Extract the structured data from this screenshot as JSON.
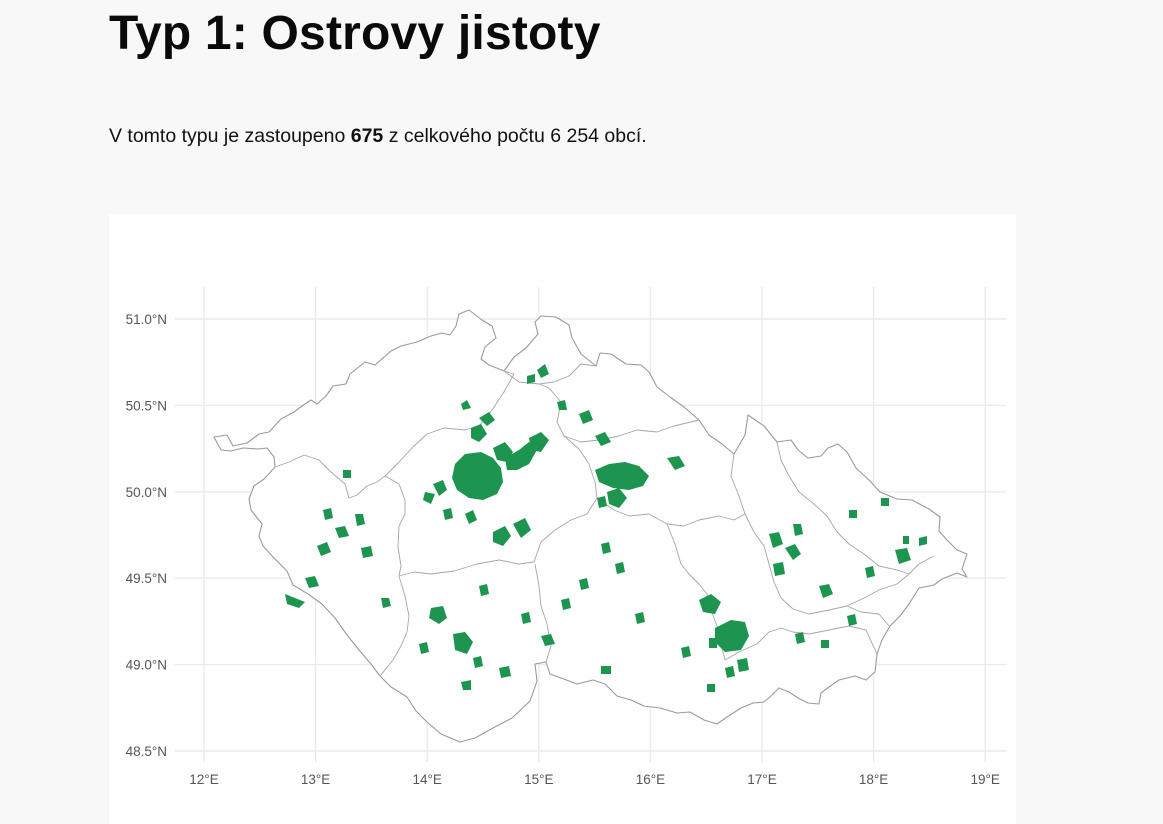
{
  "page": {
    "title": "Typ 1: Ostrovy jistoty",
    "summary_before": "V tomto typu je zastoupeno ",
    "summary_count": "675",
    "summary_after": " z celkového počtu 6 254 obcí."
  },
  "map": {
    "type": "choropleth",
    "highlight_color": "#1d944f",
    "border_color": "#9a9a9a",
    "grid": true,
    "lon_ticks": [
      {
        "value": 12,
        "label": "12°E"
      },
      {
        "value": 13,
        "label": "13°E"
      },
      {
        "value": 14,
        "label": "14°E"
      },
      {
        "value": 15,
        "label": "15°E"
      },
      {
        "value": 16,
        "label": "16°E"
      },
      {
        "value": 17,
        "label": "17°E"
      },
      {
        "value": 18,
        "label": "18°E"
      },
      {
        "value": 19,
        "label": "19°E"
      }
    ],
    "lat_ticks": [
      {
        "value": 51.0,
        "label": "51.0°N"
      },
      {
        "value": 50.5,
        "label": "50.5°N"
      },
      {
        "value": 50.0,
        "label": "50.0°N"
      },
      {
        "value": 49.5,
        "label": "49.5°N"
      },
      {
        "value": 49.0,
        "label": "49.0°N"
      },
      {
        "value": 48.5,
        "label": "48.5°N"
      }
    ]
  }
}
